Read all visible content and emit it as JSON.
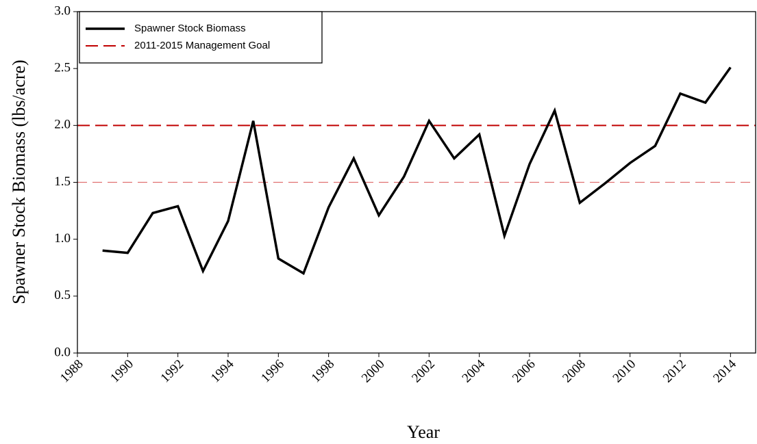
{
  "chart_data": {
    "type": "line",
    "x_label": "Year",
    "y_label": "Spawner Stock Biomass (lbs/acre)",
    "x": [
      1989,
      1990,
      1991,
      1992,
      1993,
      1994,
      1995,
      1996,
      1997,
      1998,
      1999,
      2000,
      2001,
      2002,
      2003,
      2004,
      2005,
      2006,
      2007,
      2008,
      2009,
      2010,
      2011,
      2012,
      2013,
      2014
    ],
    "series": [
      {
        "name": "Spawner Stock Biomass",
        "color": "#000000",
        "values": [
          0.9,
          0.88,
          1.23,
          1.29,
          0.72,
          1.16,
          2.04,
          0.83,
          0.7,
          1.28,
          1.71,
          1.21,
          1.55,
          2.04,
          1.71,
          1.92,
          1.03,
          1.66,
          2.13,
          1.32,
          1.49,
          1.67,
          1.82,
          2.28,
          2.2,
          2.51
        ]
      }
    ],
    "hlines": [
      {
        "name": "2011-2015 Management Goal",
        "value": 2.0,
        "color": "#c00000"
      },
      {
        "value": 1.5,
        "color": "#e07070"
      }
    ],
    "xlim": [
      1988,
      2015
    ],
    "ylim": [
      0,
      3
    ],
    "xticks": [
      1988,
      1990,
      1992,
      1994,
      1996,
      1998,
      2000,
      2002,
      2004,
      2006,
      2008,
      2010,
      2012,
      2014
    ],
    "yticks": [
      {
        "value": 0,
        "label": "0.0"
      },
      {
        "value": 0.5,
        "label": "0.5"
      },
      {
        "value": 1,
        "label": "1.0"
      },
      {
        "value": 1.5,
        "label": "1.5"
      },
      {
        "value": 2,
        "label": "2.0"
      },
      {
        "value": 2.5,
        "label": "2.5"
      },
      {
        "value": 3,
        "label": "3.0"
      }
    ],
    "legend": "upper left"
  }
}
